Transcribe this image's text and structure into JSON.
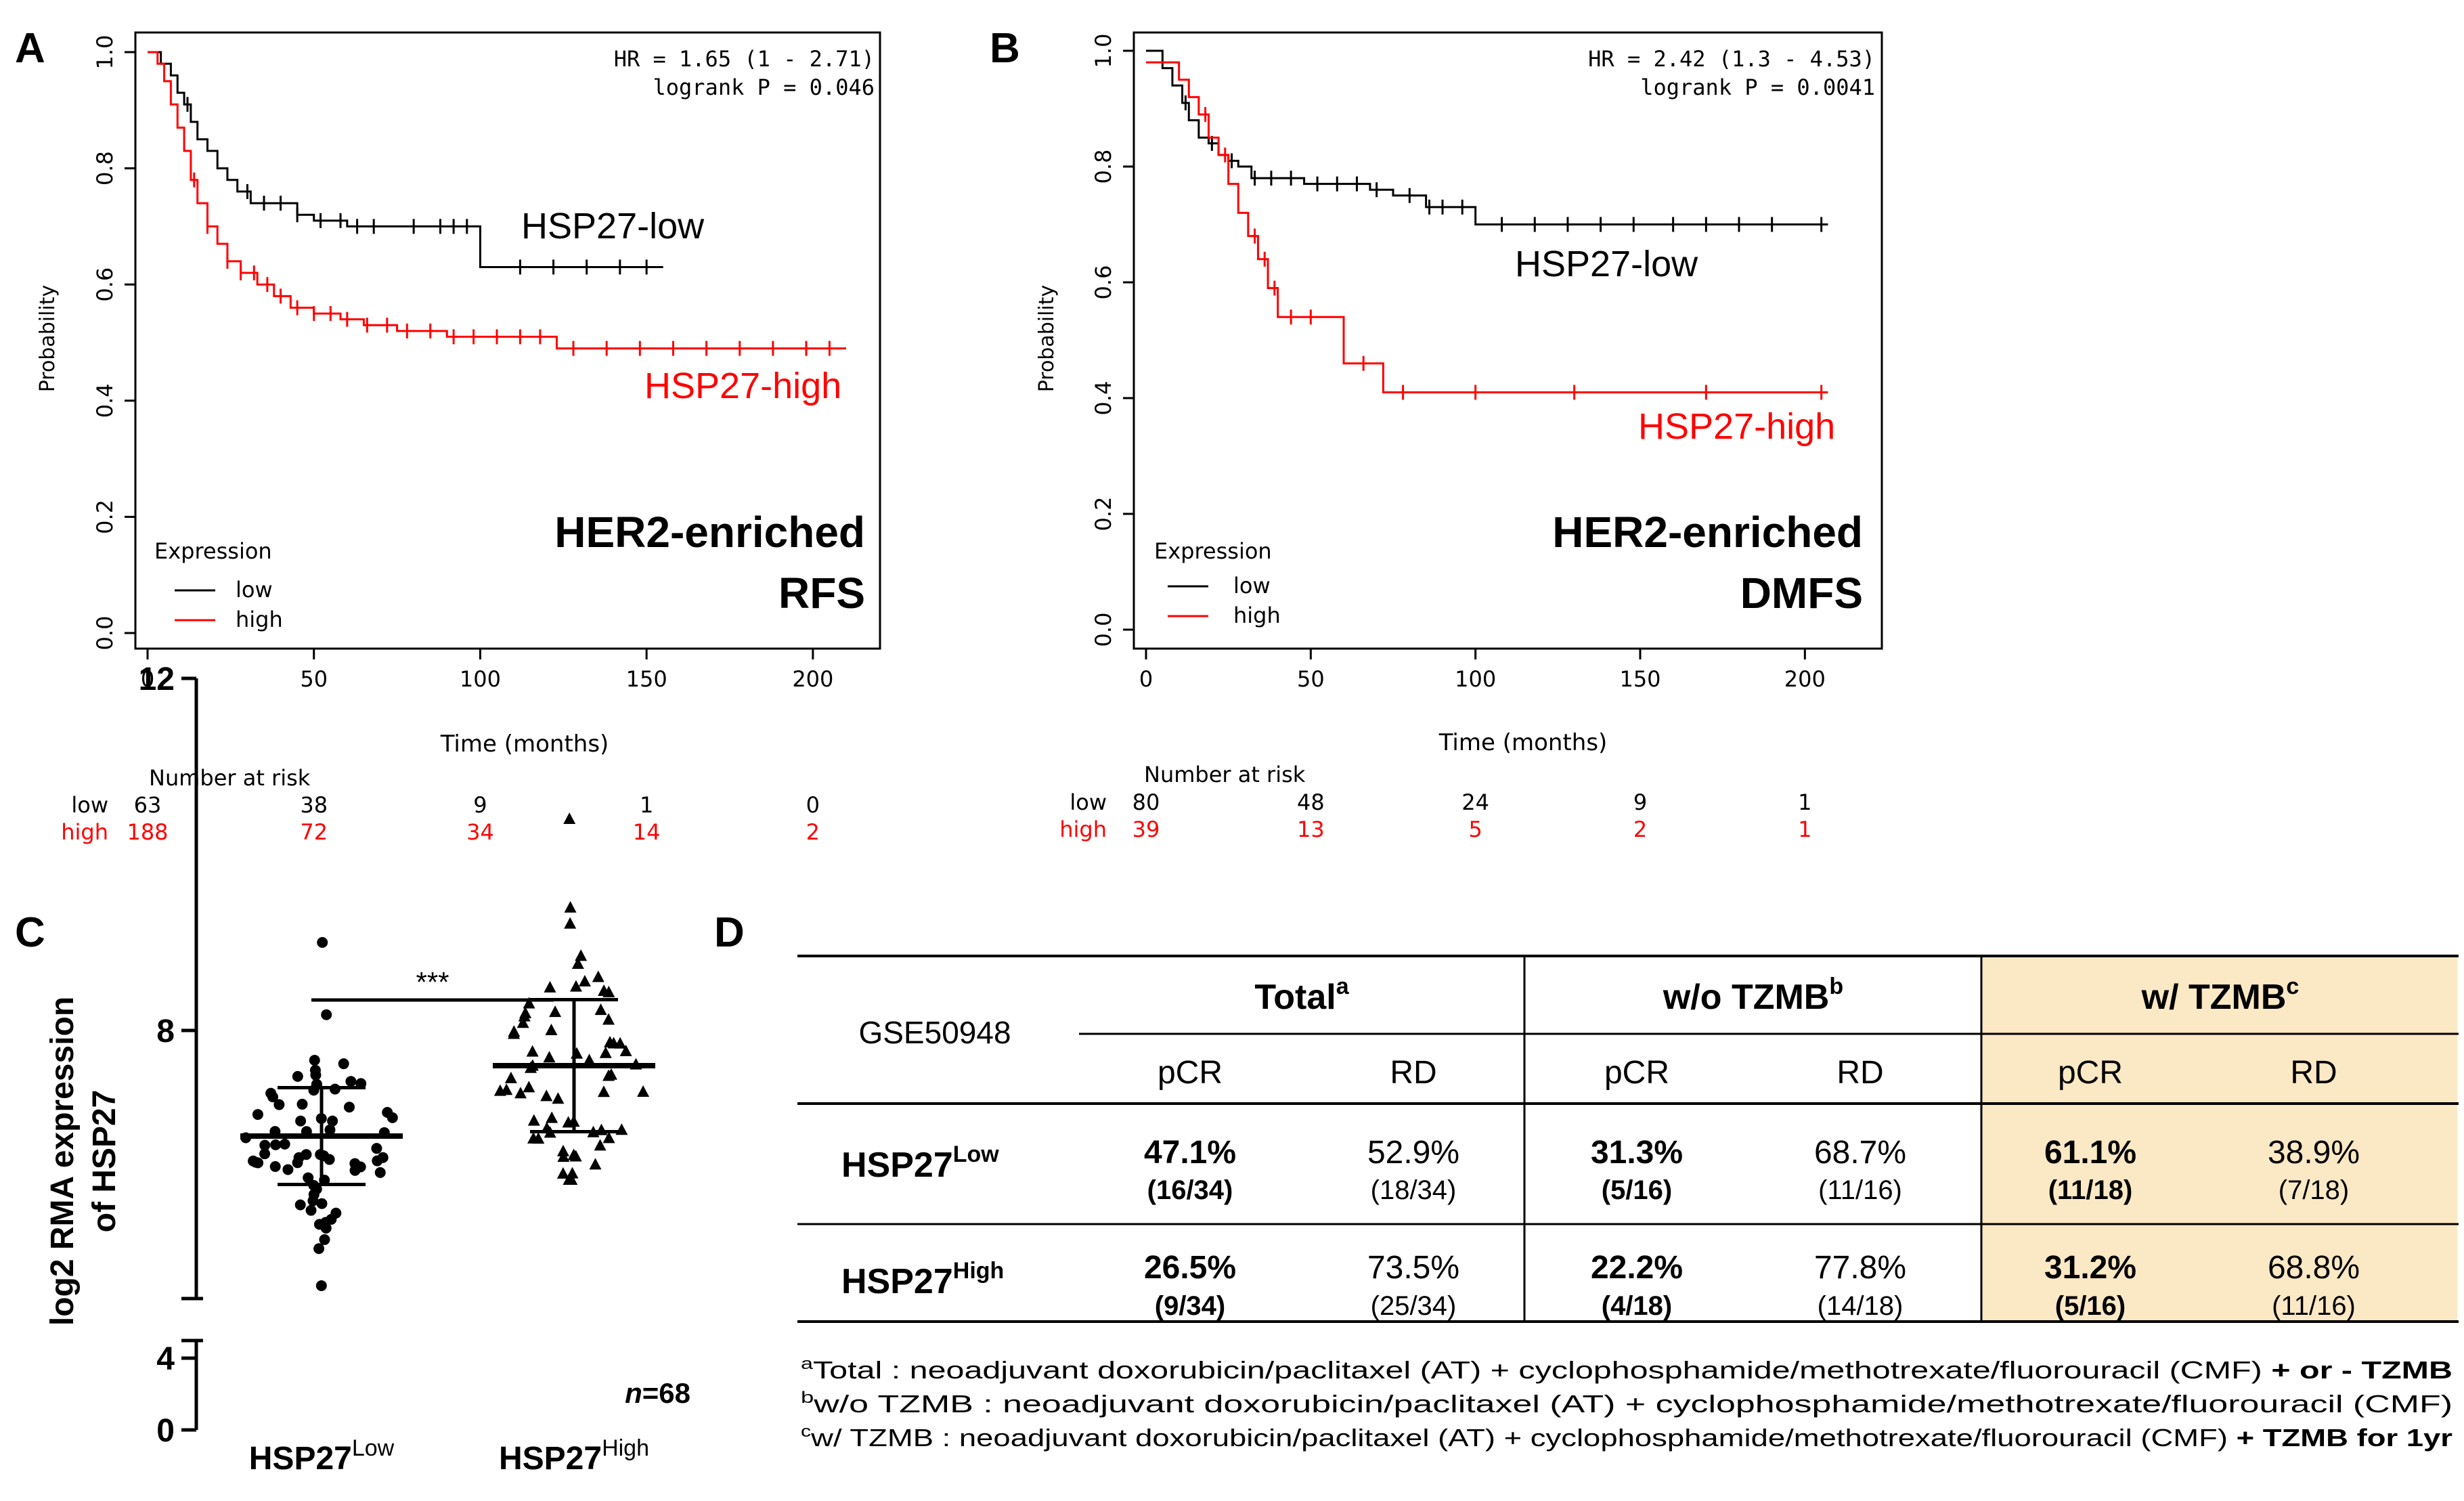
{
  "colors": {
    "low": "#000000",
    "high": "#ff0000",
    "highlight": "#fbe8c4",
    "axis": "#000000"
  },
  "panels": {
    "a": {
      "letter": "A"
    },
    "b": {
      "letter": "B"
    },
    "c": {
      "letter": "C"
    },
    "d": {
      "letter": "D"
    }
  },
  "chart_data": [
    {
      "type": "line",
      "panel": "A",
      "title": "HER2-enriched RFS",
      "title_line1": "HER2-enriched",
      "title_line2": "RFS",
      "xlabel": "Time (months)",
      "ylabel": "Probability",
      "xlim": [
        0,
        210
      ],
      "ylim": [
        0,
        1
      ],
      "xticks": [
        "0",
        "50",
        "100",
        "150",
        "200"
      ],
      "xtick_values": [
        0,
        50,
        100,
        150,
        200
      ],
      "yticks": [
        "0.0",
        "0.2",
        "0.4",
        "0.6",
        "0.8",
        "1.0"
      ],
      "ytick_values": [
        0,
        0.2,
        0.4,
        0.6,
        0.8,
        1.0
      ],
      "hr_text": "HR = 1.65 (1 - 2.71)",
      "p_text": "logrank P = 0.046",
      "legend": {
        "title": "Expression",
        "low": "low",
        "high": "high"
      },
      "series": [
        {
          "name": "low",
          "label": "HSP27-low",
          "x": [
            0,
            4,
            7,
            9,
            11,
            13,
            15,
            18,
            21,
            24,
            27,
            31,
            36,
            45,
            50,
            60,
            70,
            98,
            100,
            155
          ],
          "y": [
            1.0,
            0.98,
            0.96,
            0.93,
            0.91,
            0.88,
            0.85,
            0.83,
            0.8,
            0.78,
            0.76,
            0.74,
            0.74,
            0.72,
            0.71,
            0.7,
            0.7,
            0.7,
            0.63,
            0.63
          ],
          "censor_x": [
            12,
            30,
            35,
            40,
            45,
            52,
            58,
            63,
            68,
            80,
            88,
            92,
            96,
            112,
            122,
            132,
            142,
            150
          ]
        },
        {
          "name": "high",
          "label": "HSP27-high",
          "x": [
            0,
            3,
            5,
            7,
            9,
            11,
            13,
            15,
            18,
            21,
            24,
            28,
            33,
            38,
            43,
            50,
            58,
            65,
            75,
            90,
            100,
            110,
            123,
            140,
            210
          ],
          "y": [
            1.0,
            0.98,
            0.95,
            0.91,
            0.87,
            0.83,
            0.78,
            0.74,
            0.7,
            0.67,
            0.64,
            0.62,
            0.6,
            0.58,
            0.56,
            0.55,
            0.54,
            0.53,
            0.52,
            0.51,
            0.51,
            0.51,
            0.49,
            0.49,
            0.49
          ],
          "censor_x": [
            14,
            18,
            24,
            28,
            32,
            36,
            40,
            45,
            50,
            55,
            60,
            66,
            72,
            78,
            85,
            92,
            98,
            105,
            112,
            118,
            128,
            138,
            148,
            158,
            168,
            178,
            188,
            198,
            205
          ]
        }
      ],
      "risk_table": {
        "header": "Number at risk",
        "row_low_label": "low",
        "row_high_label": "high",
        "low": [
          "63",
          "38",
          "9",
          "1",
          "0"
        ],
        "high": [
          "188",
          "72",
          "34",
          "14",
          "2"
        ]
      }
    },
    {
      "type": "line",
      "panel": "B",
      "title": "HER2-enriched DMFS",
      "title_line1": "HER2-enriched",
      "title_line2": "DMFS",
      "xlabel": "Time (months)",
      "ylabel": "Probability",
      "xlim": [
        0,
        210
      ],
      "ylim": [
        0,
        1
      ],
      "xticks": [
        "0",
        "50",
        "100",
        "150",
        "200"
      ],
      "xtick_values": [
        0,
        50,
        100,
        150,
        200
      ],
      "yticks": [
        "0.0",
        "0.2",
        "0.4",
        "0.6",
        "0.8",
        "1.0"
      ],
      "ytick_values": [
        0,
        0.2,
        0.4,
        0.6,
        0.8,
        1.0
      ],
      "hr_text": "HR = 2.42 (1.3 - 4.53)",
      "p_text": "logrank P = 0.0041",
      "legend": {
        "title": "Expression",
        "low": "low",
        "high": "high"
      },
      "series": [
        {
          "name": "low",
          "label": "HSP27-low",
          "x": [
            0,
            5,
            8,
            11,
            13,
            16,
            19,
            22,
            25,
            28,
            32,
            40,
            48,
            60,
            68,
            75,
            85,
            92,
            100,
            207
          ],
          "y": [
            1.0,
            0.97,
            0.94,
            0.91,
            0.88,
            0.85,
            0.84,
            0.82,
            0.81,
            0.8,
            0.78,
            0.78,
            0.77,
            0.77,
            0.76,
            0.75,
            0.73,
            0.73,
            0.7,
            0.7
          ],
          "censor_x": [
            12,
            20,
            26,
            33,
            38,
            44,
            52,
            58,
            64,
            70,
            80,
            86,
            90,
            96,
            108,
            118,
            128,
            138,
            148,
            160,
            170,
            180,
            190,
            205
          ]
        },
        {
          "name": "high",
          "label": "HSP27-high",
          "x": [
            0,
            10,
            13,
            16,
            19,
            22,
            25,
            28,
            31,
            34,
            37,
            40,
            57,
            60,
            72,
            207
          ],
          "y": [
            0.98,
            0.95,
            0.92,
            0.89,
            0.85,
            0.82,
            0.77,
            0.72,
            0.68,
            0.64,
            0.59,
            0.54,
            0.54,
            0.46,
            0.41,
            0.41
          ],
          "censor_x": [
            18,
            24,
            33,
            36,
            39,
            44,
            50,
            66,
            78,
            100,
            130,
            170,
            205
          ]
        }
      ],
      "risk_table": {
        "header": "Number at risk",
        "row_low_label": "low",
        "row_high_label": "high",
        "low": [
          "80",
          "48",
          "24",
          "9",
          "1"
        ],
        "high": [
          "39",
          "13",
          "5",
          "2",
          "1"
        ]
      }
    },
    {
      "type": "scatter",
      "panel": "C",
      "ylabel_line1": "log2 RMA expression",
      "ylabel_line2": "of HSP27",
      "categories": [
        "HSP27^Low",
        "HSP27^High"
      ],
      "ylim": [
        0,
        12
      ],
      "yticks": [
        "0",
        "4",
        "8",
        "12"
      ],
      "ytick_values": [
        0,
        4,
        8,
        12
      ],
      "axis_break": [
        5,
        6
      ],
      "significance": "***",
      "n_label": "n",
      "n_value": "=68",
      "groups": [
        {
          "name": "HSP27-Low",
          "base": "HSP27",
          "sup": "Low",
          "marker": "circle",
          "mean": 6.8,
          "sd": 0.55,
          "min": 5.1,
          "max": 9.0,
          "count": 68
        },
        {
          "name": "HSP27-High",
          "base": "HSP27",
          "sup": "High",
          "marker": "triangle",
          "mean": 7.6,
          "sd": 0.75,
          "min": 6.3,
          "max": 10.4,
          "count": 68
        }
      ]
    },
    {
      "type": "table",
      "panel": "D",
      "dataset": "GSE50948",
      "groups": [
        {
          "name": "Total",
          "sup": "a"
        },
        {
          "name": "w/o TZMB",
          "sup": "b"
        },
        {
          "name": "w/ TZMB",
          "sup": "c"
        }
      ],
      "subheaders": [
        "pCR",
        "RD",
        "pCR",
        "RD",
        "pCR",
        "RD"
      ],
      "rows": [
        {
          "label": "HSP27",
          "sup": "Low",
          "cells": [
            {
              "pct": "47.1%",
              "frac": "(16/34)",
              "bold": true
            },
            {
              "pct": "52.9%",
              "frac": "(18/34)",
              "bold": false
            },
            {
              "pct": "31.3%",
              "frac": "(5/16)",
              "bold": true
            },
            {
              "pct": "68.7%",
              "frac": "(11/16)",
              "bold": false
            },
            {
              "pct": "61.1%",
              "frac": "(11/18)",
              "bold": true
            },
            {
              "pct": "38.9%",
              "frac": "(7/18)",
              "bold": false
            }
          ]
        },
        {
          "label": "HSP27",
          "sup": "High",
          "cells": [
            {
              "pct": "26.5%",
              "frac": "(9/34)",
              "bold": true
            },
            {
              "pct": "73.5%",
              "frac": "(25/34)",
              "bold": false
            },
            {
              "pct": "22.2%",
              "frac": "(4/18)",
              "bold": true
            },
            {
              "pct": "77.8%",
              "frac": "(14/18)",
              "bold": false
            },
            {
              "pct": "31.2%",
              "frac": "(5/16)",
              "bold": true
            },
            {
              "pct": "68.8%",
              "frac": "(11/16)",
              "bold": false
            }
          ]
        }
      ],
      "footnotes": [
        {
          "sup": "a",
          "text": "Total : neoadjuvant doxorubicin/paclitaxel (AT) + cyclophosphamide/methotrexate/fluorouracil (CMF) ",
          "bold": "+ or - TZMB"
        },
        {
          "sup": "b",
          "text": "w/o TZMB : neoadjuvant doxorubicin/paclitaxel (AT) + cyclophosphamide/methotrexate/fluorouracil (CMF)",
          "bold": ""
        },
        {
          "sup": "c",
          "text": "w/ TZMB : neoadjuvant doxorubicin/paclitaxel (AT) + cyclophosphamide/methotrexate/fluorouracil (CMF) ",
          "bold": "+ TZMB for 1yr"
        }
      ]
    }
  ]
}
